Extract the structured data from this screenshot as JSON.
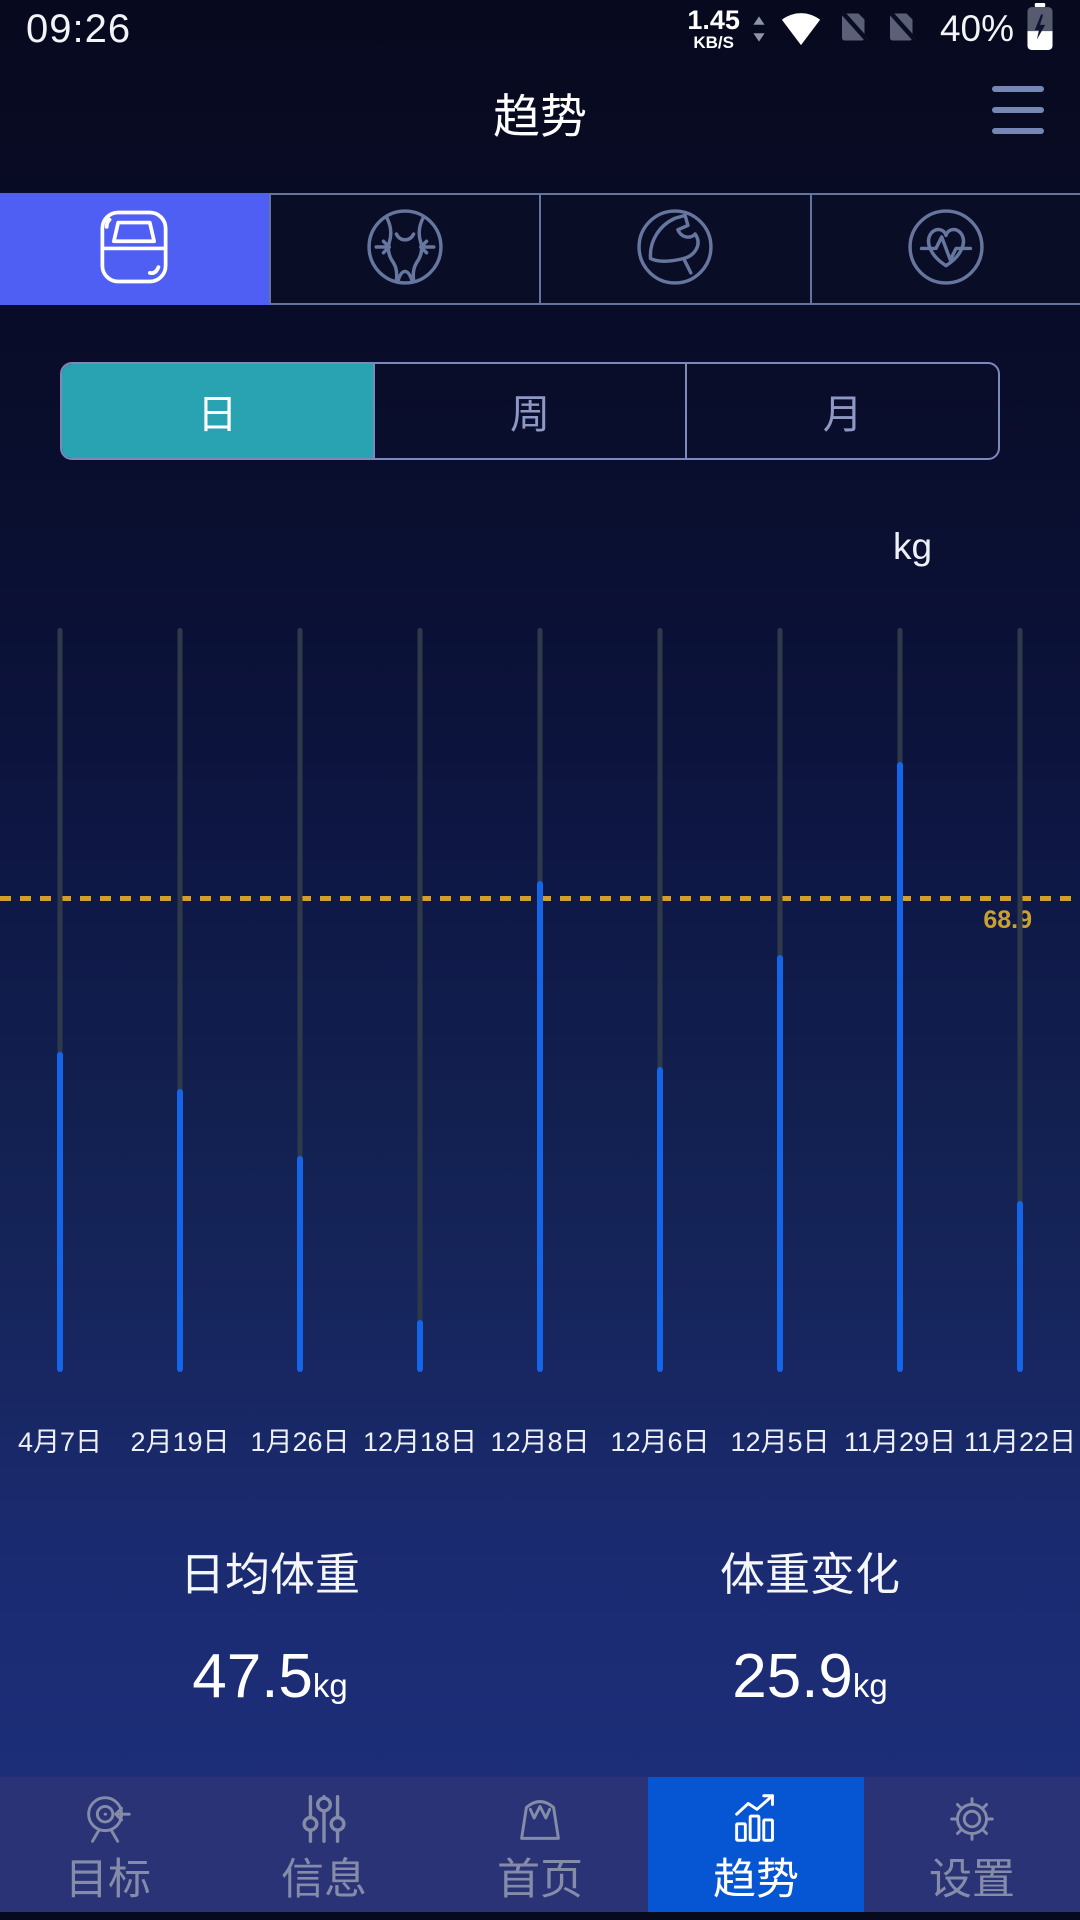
{
  "status_bar": {
    "time": "09:26",
    "net_speed_value": "1.45",
    "net_speed_unit": "KB/S",
    "battery_percent": "40%",
    "icons": [
      "network-speed-arrows-icon",
      "wifi-icon",
      "sim-disabled-icon",
      "sim-disabled-icon",
      "battery-charging-icon"
    ]
  },
  "header": {
    "title": "趋势",
    "menu_icon": "hamburger-menu-icon"
  },
  "metric_tabs": {
    "items": [
      {
        "icon": "scale-icon",
        "selected": true
      },
      {
        "icon": "body-measure-icon",
        "selected": false
      },
      {
        "icon": "muscle-icon",
        "selected": false
      },
      {
        "icon": "heart-rate-icon",
        "selected": false
      }
    ]
  },
  "period_tabs": {
    "items": [
      {
        "label": "日",
        "selected": true
      },
      {
        "label": "周",
        "selected": false
      },
      {
        "label": "月",
        "selected": false
      }
    ]
  },
  "chart_data": {
    "type": "bar",
    "ylabel": "kg",
    "categories": [
      "4月7日",
      "2月19日",
      "1月26日",
      "12月18日",
      "12月8日",
      "12月6日",
      "12月5日",
      "11月29日",
      "11月22日"
    ],
    "series": [
      {
        "name": "range-track-gray",
        "values_pct_of_range": [
          100,
          100,
          100,
          100,
          100,
          100,
          100,
          100,
          100
        ]
      },
      {
        "name": "weight-measured-blue",
        "values_pct_of_range": [
          43,
          38,
          29,
          7,
          66,
          41,
          56,
          82,
          23
        ]
      }
    ],
    "reference_line": {
      "label": "68.9",
      "value": 68.9,
      "pct_of_range": 63.7,
      "style": "dashed",
      "color": "#d2a02a"
    },
    "y_axis": {
      "ticks_visible": false
    },
    "legend": "none",
    "grid": "off"
  },
  "stats": [
    {
      "label": "日均体重",
      "value": "47.5",
      "unit": "kg"
    },
    {
      "label": "体重变化",
      "value": "25.9",
      "unit": "kg"
    }
  ],
  "bottom_nav": {
    "items": [
      {
        "label": "目标",
        "icon": "target-icon",
        "selected": false
      },
      {
        "label": "信息",
        "icon": "sliders-icon",
        "selected": false
      },
      {
        "label": "首页",
        "icon": "scale-dial-icon",
        "selected": false
      },
      {
        "label": "趋势",
        "icon": "trend-chart-icon",
        "selected": true
      },
      {
        "label": "设置",
        "icon": "gear-icon",
        "selected": false
      }
    ]
  },
  "colors": {
    "metric_selected": "#4f5ef3",
    "period_selected": "#29a2b1",
    "bar_blue": "#1565e8",
    "bar_gray": "#2e3a49",
    "reference_yellow": "#d2a02a",
    "nav_selected": "#0656d4"
  }
}
